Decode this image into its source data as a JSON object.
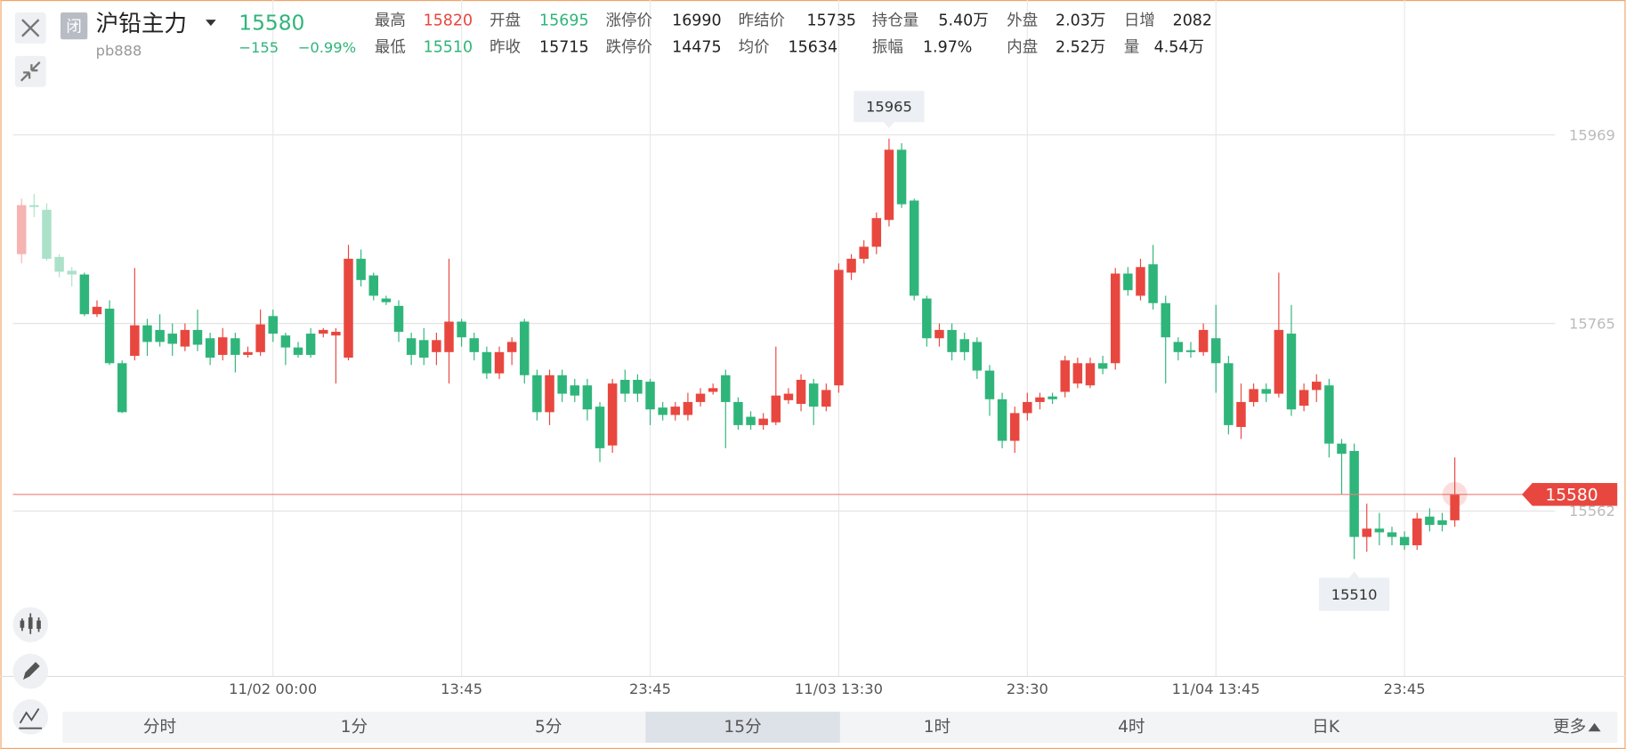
{
  "header": {
    "status": "闭",
    "name": "沪铅主力",
    "code": "pb888",
    "change": "−155",
    "change_pct": "−0.99%",
    "stats": [
      [
        {
          "label": "最高",
          "value": "15820",
          "color": "#e8473f"
        },
        {
          "label": "开盘",
          "value": "15695",
          "color": "#2fb57a"
        },
        {
          "label": "涨停价",
          "value": "16990"
        },
        {
          "label": "昨结价",
          "value": "15735"
        },
        {
          "label": "持仓量",
          "value": "5.40万"
        },
        {
          "label": "外盘",
          "value": "2.03万"
        },
        {
          "label": "日增",
          "value": "2082"
        }
      ],
      [
        {
          "label": "最低",
          "value": "15510",
          "color": "#2fb57a"
        },
        {
          "label": "昨收",
          "value": "15715"
        },
        {
          "label": "跌停价",
          "value": "14475"
        },
        {
          "label": "均价",
          "value": "15634"
        },
        {
          "label": "振幅",
          "value": "1.97%"
        },
        {
          "label": "内盘",
          "value": "2.52万"
        },
        {
          "label": "量",
          "value": "4.54万"
        }
      ]
    ]
  },
  "chart_data": {
    "type": "candlestick",
    "up_color": "#e8473f",
    "down_color": "#2fb57a",
    "grid": true,
    "ylim": [
      15383,
      16115
    ],
    "yticks": [
      15562,
      15765,
      15969
    ],
    "current_price": 15580,
    "high_marker": 15965,
    "low_marker": 15510,
    "categories": [
      null,
      null,
      null,
      null,
      null,
      null,
      null,
      null,
      null,
      null,
      null,
      null,
      null,
      null,
      null,
      null,
      null,
      null,
      null,
      null,
      "11/02 00:00",
      null,
      null,
      null,
      null,
      null,
      null,
      null,
      null,
      null,
      null,
      null,
      null,
      null,
      null,
      "13:45",
      null,
      null,
      null,
      null,
      null,
      null,
      null,
      null,
      null,
      null,
      null,
      null,
      null,
      null,
      "23:45",
      null,
      null,
      null,
      null,
      null,
      null,
      null,
      null,
      null,
      null,
      null,
      null,
      null,
      null,
      "11/03 13:30",
      null,
      null,
      null,
      null,
      null,
      null,
      null,
      null,
      null,
      null,
      null,
      null,
      null,
      null,
      "23:30",
      null,
      null,
      null,
      null,
      null,
      null,
      null,
      null,
      null,
      null,
      null,
      null,
      null,
      null,
      "11/04 13:45",
      null,
      null,
      null,
      null,
      null,
      null,
      null,
      null,
      null,
      null,
      null,
      null,
      null,
      null,
      "23:45",
      null,
      null,
      null,
      null
    ],
    "open": [
      15840,
      15893,
      15888,
      15837,
      15822,
      15818,
      15775,
      15781,
      15722,
      15730,
      15763,
      15758,
      15754,
      15740,
      15758,
      15749,
      15731,
      15749,
      15731,
      15734,
      15773,
      15752,
      15739,
      15754,
      15754,
      15752,
      15728,
      15835,
      15817,
      15792,
      15784,
      15749,
      15747,
      15734,
      15734,
      15767,
      15749,
      15734,
      15711,
      15734,
      15767,
      15709,
      15669,
      15709,
      15698,
      15698,
      15675,
      15633,
      15704,
      15704,
      15702,
      15674,
      15666,
      15666,
      15680,
      15691,
      15709,
      15680,
      15664,
      15655,
      15658,
      15682,
      15678,
      15700,
      15675,
      15698,
      15820,
      15835,
      15848,
      15877,
      15953,
      15898,
      15792,
      15749,
      15758,
      15748,
      15745,
      15714,
      15683,
      15638,
      15668,
      15680,
      15686,
      15691,
      15700,
      15698,
      15722,
      15722,
      15819,
      15795,
      15829,
      15787,
      15745,
      15736,
      15734,
      15749,
      15722,
      15653,
      15680,
      15694,
      15689,
      15754,
      15676,
      15693,
      15698,
      15635,
      15627,
      15534,
      15543,
      15539,
      15534,
      15525,
      15556,
      15552,
      15552
    ],
    "close": [
      15893,
      15891,
      15835,
      15821,
      15818,
      15775,
      15783,
      15722,
      15669,
      15763,
      15745,
      15745,
      15743,
      15758,
      15742,
      15728,
      15750,
      15731,
      15734,
      15764,
      15754,
      15739,
      15731,
      15731,
      15758,
      15756,
      15835,
      15812,
      15795,
      15788,
      15756,
      15731,
      15728,
      15747,
      15767,
      15750,
      15734,
      15711,
      15734,
      15745,
      15709,
      15669,
      15709,
      15689,
      15687,
      15672,
      15630,
      15700,
      15689,
      15689,
      15672,
      15666,
      15675,
      15680,
      15689,
      15695,
      15680,
      15655,
      15655,
      15662,
      15687,
      15689,
      15704,
      15675,
      15693,
      15823,
      15835,
      15848,
      15879,
      15953,
      15894,
      15795,
      15749,
      15758,
      15734,
      15734,
      15714,
      15683,
      15638,
      15668,
      15680,
      15685,
      15683,
      15725,
      15722,
      15722,
      15716,
      15819,
      15801,
      15826,
      15787,
      15750,
      15734,
      15734,
      15758,
      15722,
      15655,
      15680,
      15694,
      15689,
      15758,
      15672,
      15693,
      15702,
      15635,
      15624,
      15534,
      15543,
      15539,
      15534,
      15525,
      15554,
      15547,
      15547,
      15580
    ],
    "high": [
      15900,
      15905,
      15895,
      15840,
      15826,
      15820,
      15790,
      15790,
      15725,
      15825,
      15770,
      15775,
      15765,
      15765,
      15780,
      15755,
      15760,
      15755,
      15740,
      15780,
      15780,
      15755,
      15745,
      15760,
      15760,
      15760,
      15850,
      15845,
      15820,
      15795,
      15790,
      15755,
      15760,
      15755,
      15835,
      15770,
      15755,
      15740,
      15740,
      15750,
      15770,
      15715,
      15715,
      15715,
      15705,
      15705,
      15680,
      15705,
      15715,
      15710,
      15705,
      15680,
      15680,
      15690,
      15695,
      15700,
      15715,
      15685,
      15670,
      15668,
      15740,
      15695,
      15710,
      15705,
      15700,
      15830,
      15840,
      15855,
      15885,
      15965,
      15960,
      15900,
      15795,
      15765,
      15765,
      15755,
      15750,
      15720,
      15690,
      15675,
      15690,
      15690,
      15690,
      15730,
      15728,
      15728,
      15730,
      15825,
      15826,
      15835,
      15850,
      15795,
      15750,
      15745,
      15765,
      15785,
      15730,
      15700,
      15700,
      15700,
      15820,
      15785,
      15700,
      15710,
      15705,
      15640,
      15635,
      15570,
      15560,
      15545,
      15540,
      15560,
      15565,
      15560,
      15620
    ],
    "low": [
      15830,
      15880,
      15833,
      15815,
      15805,
      15773,
      15772,
      15720,
      15668,
      15725,
      15730,
      15740,
      15730,
      15735,
      15735,
      15720,
      15725,
      15712,
      15728,
      15730,
      15745,
      15720,
      15728,
      15728,
      15750,
      15700,
      15725,
      15805,
      15790,
      15785,
      15745,
      15720,
      15720,
      15720,
      15700,
      15740,
      15725,
      15705,
      15705,
      15720,
      15700,
      15660,
      15655,
      15680,
      15680,
      15660,
      15615,
      15625,
      15680,
      15680,
      15655,
      15660,
      15660,
      15660,
      15675,
      15688,
      15630,
      15650,
      15650,
      15650,
      15655,
      15678,
      15670,
      15655,
      15670,
      15690,
      15812,
      15830,
      15840,
      15870,
      15890,
      15790,
      15740,
      15740,
      15725,
      15725,
      15705,
      15665,
      15630,
      15625,
      15660,
      15672,
      15678,
      15685,
      15695,
      15695,
      15710,
      15715,
      15795,
      15790,
      15780,
      15700,
      15725,
      15728,
      15730,
      15690,
      15645,
      15640,
      15675,
      15680,
      15685,
      15665,
      15670,
      15680,
      15620,
      15580,
      15510,
      15518,
      15525,
      15525,
      15520,
      15520,
      15540,
      15540,
      15545
    ]
  },
  "tabs": {
    "items": [
      "分时",
      "1分",
      "5分",
      "15分",
      "1时",
      "4时",
      "日K",
      "更多"
    ],
    "selected": 3
  }
}
